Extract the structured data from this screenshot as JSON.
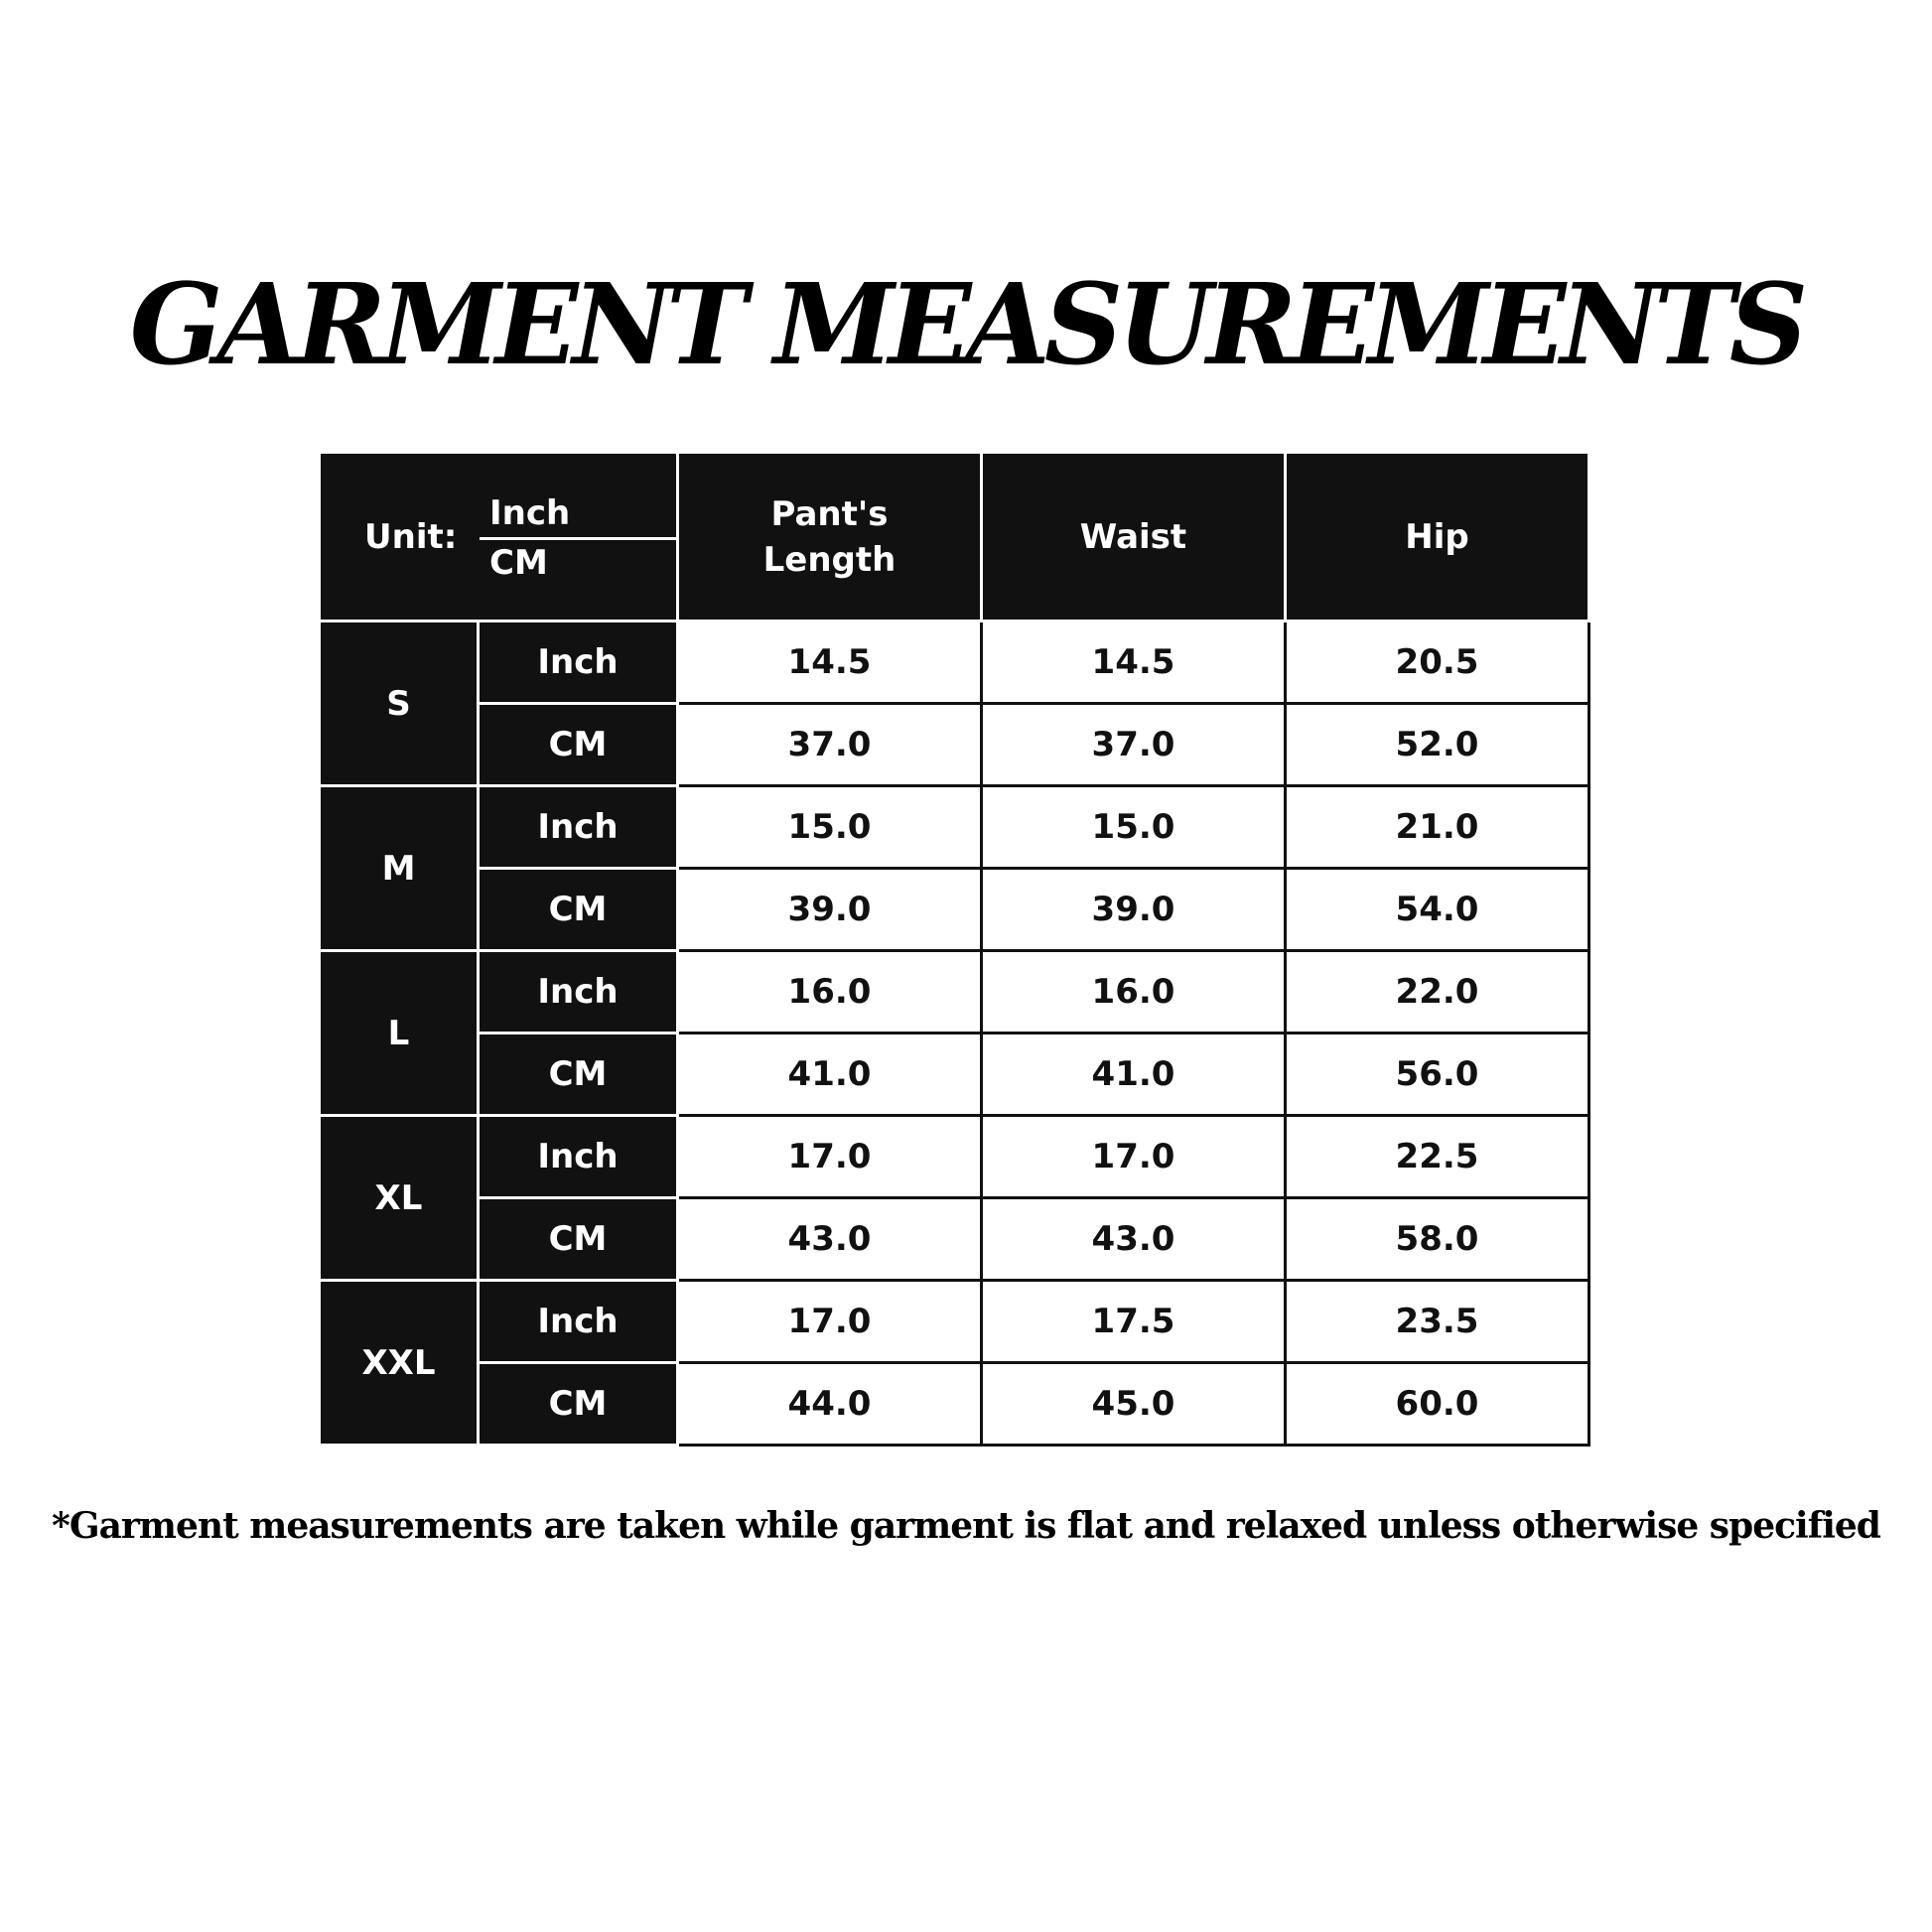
{
  "title": "GARMENT MEASUREMENTS",
  "table": {
    "unit_label": "Unit:",
    "unit_top": "Inch",
    "unit_bottom": "CM",
    "columns": [
      "Pant's Length",
      "Waist",
      "Hip"
    ],
    "sizes": [
      {
        "size": "S",
        "rows": [
          {
            "unit": "Inch",
            "values": [
              "14.5",
              "14.5",
              "20.5"
            ]
          },
          {
            "unit": "CM",
            "values": [
              "37.0",
              "37.0",
              "52.0"
            ]
          }
        ]
      },
      {
        "size": "M",
        "rows": [
          {
            "unit": "Inch",
            "values": [
              "15.0",
              "15.0",
              "21.0"
            ]
          },
          {
            "unit": "CM",
            "values": [
              "39.0",
              "39.0",
              "54.0"
            ]
          }
        ]
      },
      {
        "size": "L",
        "rows": [
          {
            "unit": "Inch",
            "values": [
              "16.0",
              "16.0",
              "22.0"
            ]
          },
          {
            "unit": "CM",
            "values": [
              "41.0",
              "41.0",
              "56.0"
            ]
          }
        ]
      },
      {
        "size": "XL",
        "rows": [
          {
            "unit": "Inch",
            "values": [
              "17.0",
              "17.0",
              "22.5"
            ]
          },
          {
            "unit": "CM",
            "values": [
              "43.0",
              "43.0",
              "58.0"
            ]
          }
        ]
      },
      {
        "size": "XXL",
        "rows": [
          {
            "unit": "Inch",
            "values": [
              "17.0",
              "17.5",
              "23.5"
            ]
          },
          {
            "unit": "CM",
            "values": [
              "44.0",
              "45.0",
              "60.0"
            ]
          }
        ]
      }
    ]
  },
  "footnote": "*Garment measurements are taken while garment is flat and relaxed unless otherwise specified",
  "colors": {
    "header_bg": "#111111",
    "header_text": "#ffffff",
    "cell_bg": "#ffffff"
  }
}
